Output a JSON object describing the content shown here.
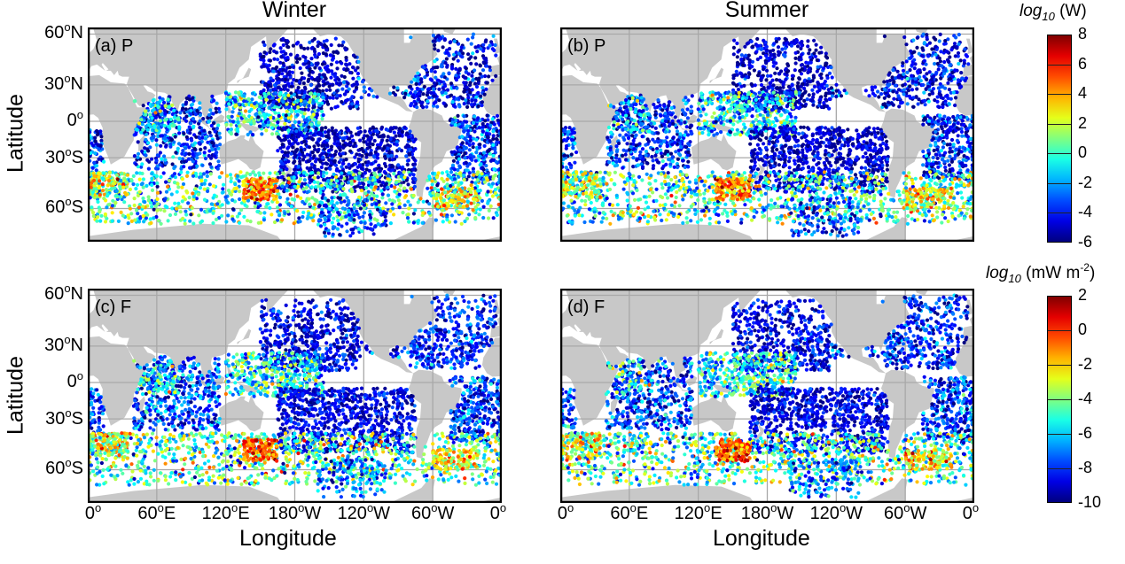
{
  "columns": {
    "left_title": "Winter",
    "right_title": "Summer"
  },
  "axes": {
    "ylabel": "Latitude",
    "xlabel": "Longitude",
    "lat_ticks": [
      {
        "deg": "60",
        "deg_sym": "o",
        "hemi": "N"
      },
      {
        "deg": "30",
        "deg_sym": "o",
        "hemi": "N"
      },
      {
        "deg": "0",
        "deg_sym": "o",
        "hemi": ""
      },
      {
        "deg": "30",
        "deg_sym": "o",
        "hemi": "S"
      },
      {
        "deg": "60",
        "deg_sym": "o",
        "hemi": "S"
      }
    ],
    "lon_ticks": [
      {
        "deg": "0",
        "deg_sym": "o",
        "hemi": ""
      },
      {
        "deg": "60",
        "deg_sym": "o",
        "hemi": "E"
      },
      {
        "deg": "120",
        "deg_sym": "o",
        "hemi": "E"
      },
      {
        "deg": "180",
        "deg_sym": "o",
        "hemi": "W"
      },
      {
        "deg": "120",
        "deg_sym": "o",
        "hemi": "W"
      },
      {
        "deg": "60",
        "deg_sym": "o",
        "hemi": "W"
      },
      {
        "deg": "0",
        "deg_sym": "o",
        "hemi": ""
      }
    ]
  },
  "panels": [
    {
      "label": "(a) P",
      "season": "Winter",
      "variable": "P"
    },
    {
      "label": "(b) P",
      "season": "Summer",
      "variable": "P"
    },
    {
      "label": "(c) F",
      "season": "Winter",
      "variable": "F"
    },
    {
      "label": "(d) F",
      "season": "Summer",
      "variable": "F"
    }
  ],
  "colorbars": [
    {
      "title_log": "log",
      "title_sub": "10",
      "title_unit": " (W)",
      "title_unit_sup": "",
      "title_unit_end": "",
      "range": [
        -6,
        8
      ],
      "ticks": [
        "8",
        "6",
        "4",
        "2",
        "0",
        "-2",
        "-4",
        "-6"
      ]
    },
    {
      "title_log": "log",
      "title_sub": "10",
      "title_unit": " (mW m",
      "title_unit_sup": "-2",
      "title_unit_end": ")",
      "range": [
        -10,
        2
      ],
      "ticks": [
        "2",
        "0",
        "-2",
        "-4",
        "-6",
        "-8",
        "-10"
      ]
    }
  ],
  "chart_data": {
    "type": "scatter",
    "projection": "mercator",
    "lon_range": [
      0,
      360
    ],
    "lat_range": [
      -75,
      63
    ],
    "colormap": "jet",
    "grid": true,
    "land_color": "#c8c8c8",
    "grid_color": "#a8a8a8",
    "panels": [
      "(a) P",
      "(b) P",
      "(c) F",
      "(d) F"
    ],
    "patterns": {
      "north_pacific": "mostly low (dark blue)",
      "south_pacific": "mostly low (dark blue)",
      "tropical_west_pacific": "intermediate (cyan-green)",
      "southern_ocean": "high (yellow-red), peak south of Australia"
    }
  }
}
